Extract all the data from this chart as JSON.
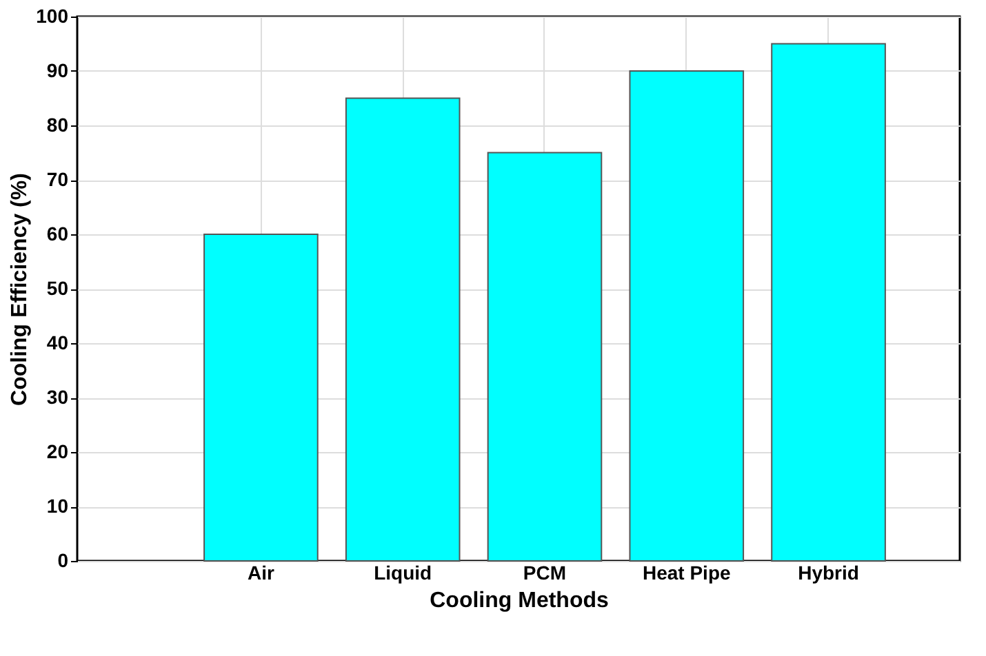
{
  "chart_data": {
    "type": "bar",
    "xlabel": "Cooling Methods",
    "ylabel": "Cooling Efficiency (%)",
    "categories": [
      "Air",
      "Liquid",
      "PCM",
      "Heat Pipe",
      "Hybrid"
    ],
    "values": [
      60,
      85,
      75,
      90,
      95
    ],
    "color": "#00ffff",
    "ylim": [
      0,
      100
    ],
    "yticks": [
      0,
      10,
      20,
      30,
      40,
      50,
      60,
      70,
      80,
      90,
      100
    ],
    "grid": true
  }
}
